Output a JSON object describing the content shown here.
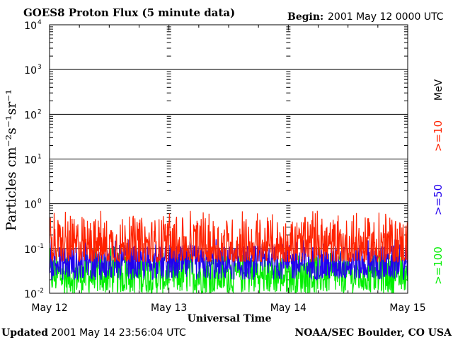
{
  "chart_data": {
    "type": "line",
    "title": "GOES8 Proton Flux (5 minute data)",
    "begin_label": "Begin:",
    "begin_value": "2001 May 12 0000 UTC",
    "ylabel": "Particles cm⁻²s⁻¹sr⁻¹",
    "xlabel": "Universal Time",
    "x_ticks": [
      "May 12",
      "May 13",
      "May 14",
      "May 15"
    ],
    "y_ticks": [
      {
        "base": "10",
        "exp": "4"
      },
      {
        "base": "10",
        "exp": "3"
      },
      {
        "base": "10",
        "exp": "2"
      },
      {
        "base": "10",
        "exp": "1"
      },
      {
        "base": "10",
        "exp": "0"
      },
      {
        "base": "10",
        "exp": "-1"
      },
      {
        "base": "10",
        "exp": "-2"
      }
    ],
    "y_scale": "log",
    "ylim": [
      0.01,
      10000
    ],
    "xlim_days": [
      0,
      3
    ],
    "grid": true,
    "energy_unit": "MeV",
    "series": [
      {
        "name": ">=10",
        "color": "#ff2200",
        "typical_range": [
          0.05,
          0.5
        ]
      },
      {
        "name": ">=50",
        "color": "#2200ee",
        "typical_range": [
          0.02,
          0.12
        ]
      },
      {
        "name": ">=100",
        "color": "#00ee00",
        "typical_range": [
          0.01,
          0.08
        ]
      }
    ],
    "footer_left_label": "Updated",
    "footer_left_value": "2001 May 14 23:56:04 UTC",
    "footer_right": "NOAA/SEC Boulder, CO USA"
  }
}
